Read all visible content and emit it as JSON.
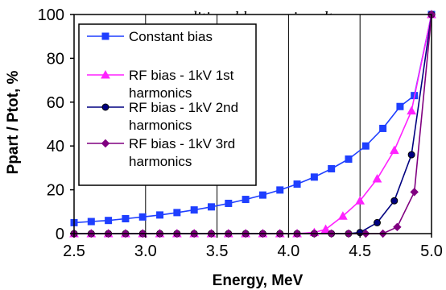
{
  "chart_data": {
    "type": "line",
    "title": "ditional harmonic voltage",
    "xlabel": "Energy, MeV",
    "ylabel": "Ppart / Ptot, %",
    "xlim": [
      2.5,
      5.0
    ],
    "ylim": [
      0,
      100
    ],
    "xticks": [
      "2.5",
      "3.0",
      "3.5",
      "4.0",
      "4.5",
      "5.0"
    ],
    "yticks": [
      "0",
      "20",
      "40",
      "60",
      "80",
      "100"
    ],
    "grid": "vertical",
    "legend_position": "top-left",
    "series": [
      {
        "name": "Constant bias",
        "color": "#1f3fff",
        "marker": "square",
        "points": [
          [
            2.5,
            5
          ],
          [
            2.62,
            5.5
          ],
          [
            2.74,
            6
          ],
          [
            2.86,
            6.8
          ],
          [
            2.98,
            7.6
          ],
          [
            3.1,
            8.5
          ],
          [
            3.22,
            9.6
          ],
          [
            3.34,
            10.8
          ],
          [
            3.46,
            12.2
          ],
          [
            3.58,
            13.8
          ],
          [
            3.7,
            15.6
          ],
          [
            3.82,
            17.6
          ],
          [
            3.94,
            19.9
          ],
          [
            4.06,
            22.6
          ],
          [
            4.18,
            25.8
          ],
          [
            4.3,
            29.6
          ],
          [
            4.42,
            34
          ],
          [
            4.54,
            40
          ],
          [
            4.66,
            48
          ],
          [
            4.78,
            58
          ],
          [
            4.88,
            63
          ],
          [
            5.0,
            100
          ]
        ]
      },
      {
        "name": "RF bias - 1kV 1st harmonics",
        "color": "#ff22ff",
        "marker": "triangle",
        "points": [
          [
            2.5,
            0
          ],
          [
            2.62,
            0
          ],
          [
            2.74,
            0
          ],
          [
            2.86,
            0
          ],
          [
            2.98,
            0
          ],
          [
            3.1,
            0
          ],
          [
            3.22,
            0
          ],
          [
            3.34,
            0
          ],
          [
            3.46,
            0
          ],
          [
            3.58,
            0
          ],
          [
            3.7,
            0
          ],
          [
            3.82,
            0
          ],
          [
            3.94,
            0
          ],
          [
            4.06,
            0
          ],
          [
            4.18,
            0.5
          ],
          [
            4.26,
            2
          ],
          [
            4.38,
            8
          ],
          [
            4.5,
            15
          ],
          [
            4.62,
            25
          ],
          [
            4.74,
            38
          ],
          [
            4.86,
            56
          ],
          [
            5.0,
            100
          ]
        ]
      },
      {
        "name": "RF bias - 1kV 2nd harmonics",
        "color": "#000080",
        "marker": "circle",
        "points": [
          [
            2.5,
            0
          ],
          [
            2.62,
            0
          ],
          [
            2.74,
            0
          ],
          [
            2.86,
            0
          ],
          [
            2.98,
            0
          ],
          [
            3.1,
            0
          ],
          [
            3.22,
            0
          ],
          [
            3.34,
            0
          ],
          [
            3.46,
            0
          ],
          [
            3.58,
            0
          ],
          [
            3.7,
            0
          ],
          [
            3.82,
            0
          ],
          [
            3.94,
            0
          ],
          [
            4.06,
            0
          ],
          [
            4.18,
            0
          ],
          [
            4.3,
            0
          ],
          [
            4.42,
            0
          ],
          [
            4.5,
            0.5
          ],
          [
            4.62,
            5
          ],
          [
            4.74,
            15
          ],
          [
            4.86,
            36
          ],
          [
            5.0,
            100
          ]
        ]
      },
      {
        "name": "RF bias - 1kV 3rd harmonics",
        "color": "#800080",
        "marker": "diamond",
        "points": [
          [
            2.5,
            0
          ],
          [
            2.62,
            0
          ],
          [
            2.74,
            0
          ],
          [
            2.86,
            0
          ],
          [
            2.98,
            0
          ],
          [
            3.1,
            0
          ],
          [
            3.22,
            0
          ],
          [
            3.34,
            0
          ],
          [
            3.46,
            0
          ],
          [
            3.58,
            0
          ],
          [
            3.7,
            0
          ],
          [
            3.82,
            0
          ],
          [
            3.94,
            0
          ],
          [
            4.06,
            0
          ],
          [
            4.18,
            0
          ],
          [
            4.3,
            0
          ],
          [
            4.42,
            0
          ],
          [
            4.54,
            0
          ],
          [
            4.66,
            0
          ],
          [
            4.76,
            3
          ],
          [
            4.88,
            19
          ],
          [
            5.0,
            100
          ]
        ]
      }
    ],
    "legend_entries": [
      [
        "Constant bias"
      ],
      [
        "RF bias - 1kV 1st",
        "harmonics"
      ],
      [
        "RF bias - 1kV 2nd",
        "harmonics"
      ],
      [
        "RF bias - 1kV 3rd",
        "harmonics"
      ]
    ]
  }
}
